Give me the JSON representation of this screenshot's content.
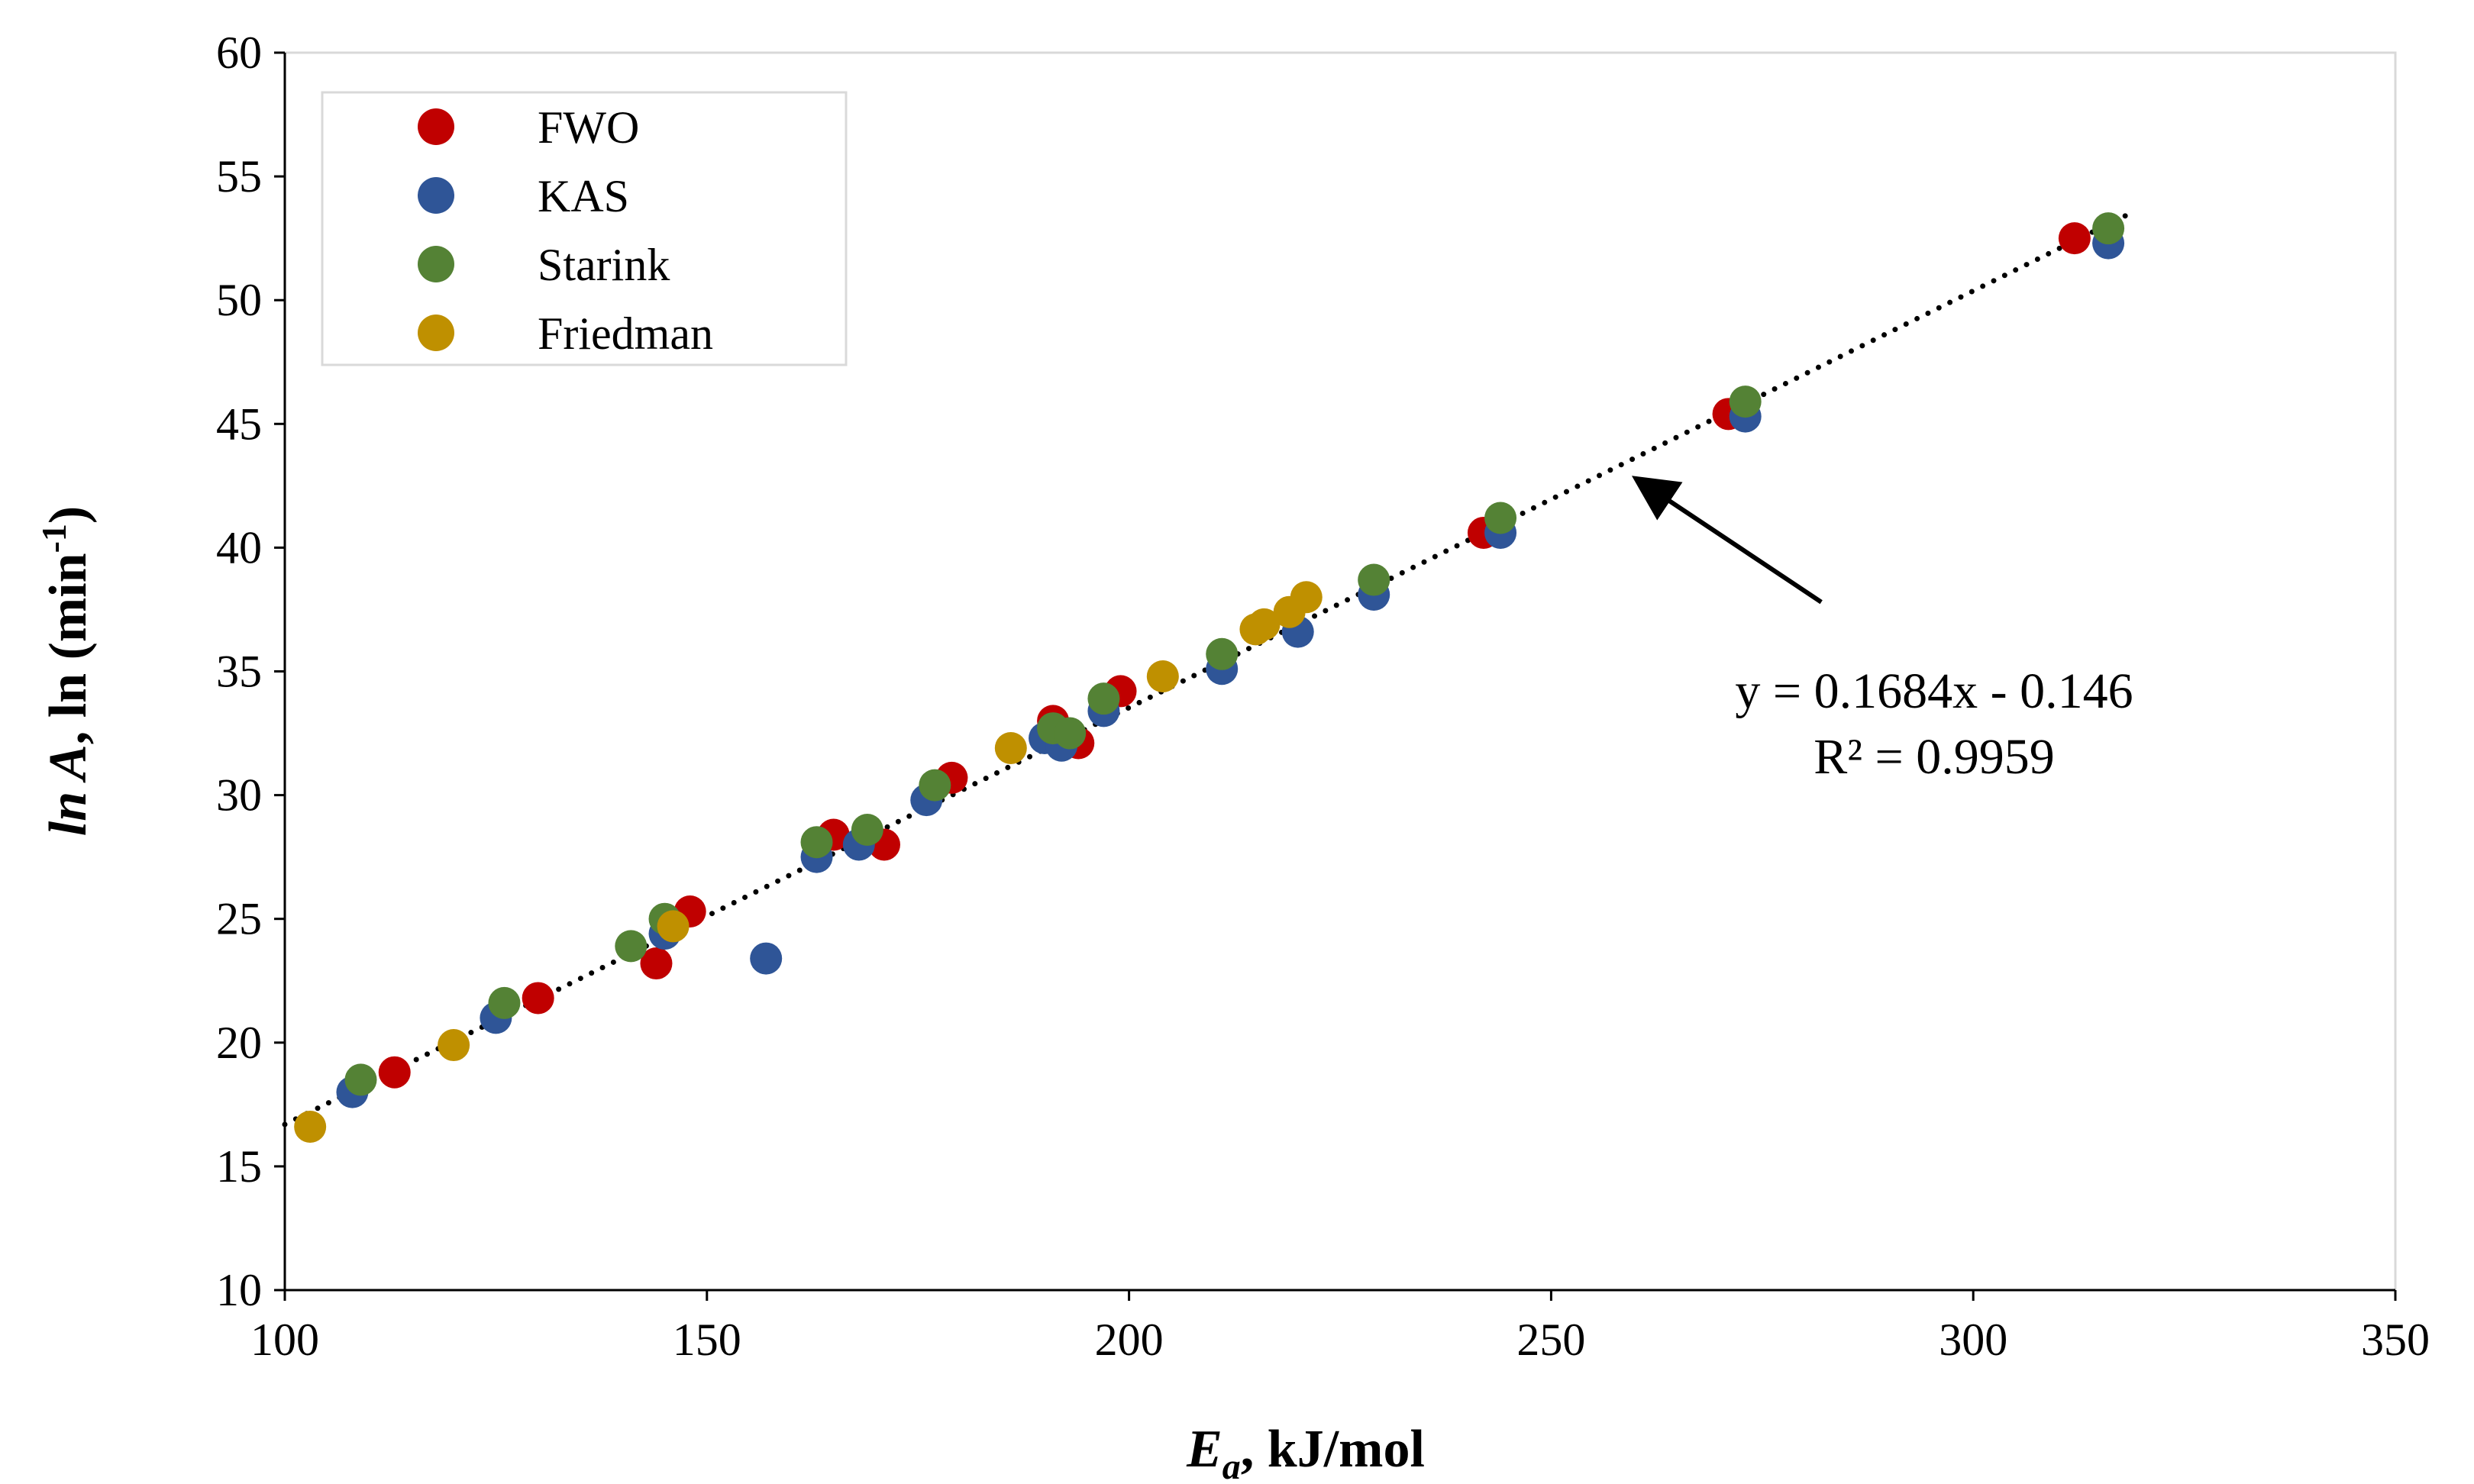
{
  "chart_data": {
    "type": "scatter",
    "title": "",
    "xlabel_main": "E",
    "xlabel_sub": "a",
    "xlabel_rest": ", kJ/mol",
    "ylabel_italic": "ln A",
    "ylabel_plain": ", ln (min",
    "ylabel_sup": "-1",
    "ylabel_close": ")",
    "xlim": [
      100,
      350
    ],
    "ylim": [
      10,
      60
    ],
    "x_ticks": [
      100,
      150,
      200,
      250,
      300,
      350
    ],
    "y_ticks": [
      10,
      15,
      20,
      25,
      30,
      35,
      40,
      45,
      50,
      55,
      60
    ],
    "x_tick_labels": [
      "100",
      "150",
      "200",
      "250",
      "300",
      "350"
    ],
    "y_tick_labels": [
      "10",
      "15",
      "20",
      "25",
      "30",
      "35",
      "40",
      "45",
      "50",
      "55",
      "60"
    ],
    "grid": false,
    "legend_position": "top-left",
    "series": [
      {
        "name": "FWO",
        "color": "#c00000",
        "points": [
          [
            113,
            18.8
          ],
          [
            130,
            21.8
          ],
          [
            144,
            23.2
          ],
          [
            148,
            25.3
          ],
          [
            165,
            28.4
          ],
          [
            171,
            28.0
          ],
          [
            179,
            30.7
          ],
          [
            191,
            33.0
          ],
          [
            194,
            32.1
          ],
          [
            199,
            34.2
          ],
          [
            242,
            40.6
          ],
          [
            271,
            45.4
          ],
          [
            312,
            52.5
          ]
        ]
      },
      {
        "name": "KAS",
        "color": "#2f5597",
        "points": [
          [
            108,
            18.0
          ],
          [
            125,
            21.0
          ],
          [
            145,
            24.4
          ],
          [
            157,
            23.4
          ],
          [
            163,
            27.5
          ],
          [
            168,
            28.0
          ],
          [
            176,
            29.8
          ],
          [
            190,
            32.3
          ],
          [
            192,
            32.0
          ],
          [
            197,
            33.4
          ],
          [
            211,
            35.1
          ],
          [
            220,
            36.6
          ],
          [
            229,
            38.1
          ],
          [
            244,
            40.6
          ],
          [
            273,
            45.3
          ],
          [
            316,
            52.3
          ]
        ]
      },
      {
        "name": "Starink",
        "color": "#548235",
        "points": [
          [
            109,
            18.5
          ],
          [
            126,
            21.6
          ],
          [
            141,
            23.9
          ],
          [
            145,
            25.0
          ],
          [
            163,
            28.1
          ],
          [
            169,
            28.6
          ],
          [
            177,
            30.4
          ],
          [
            191,
            32.7
          ],
          [
            193,
            32.5
          ],
          [
            197,
            33.9
          ],
          [
            211,
            35.7
          ],
          [
            229,
            38.7
          ],
          [
            244,
            41.2
          ],
          [
            273,
            45.9
          ],
          [
            316,
            52.9
          ]
        ]
      },
      {
        "name": "Friedman",
        "color": "#bf9000",
        "points": [
          [
            103,
            16.6
          ],
          [
            120,
            19.9
          ],
          [
            146,
            24.7
          ],
          [
            186,
            31.9
          ],
          [
            204,
            34.8
          ],
          [
            215,
            36.7
          ],
          [
            216,
            36.9
          ],
          [
            219,
            37.4
          ],
          [
            221,
            38.0
          ]
        ]
      }
    ],
    "trendline": {
      "style": "dotted",
      "slope": 0.1684,
      "intercept": -0.146,
      "x_range": [
        100,
        318
      ],
      "equation_label": "y = 0.1684x - 0.146",
      "r2_label": "R² = 0.9959"
    },
    "annotation_arrow": {
      "from": [
        282,
        37.8
      ],
      "to": [
        260,
        42.8
      ]
    }
  }
}
